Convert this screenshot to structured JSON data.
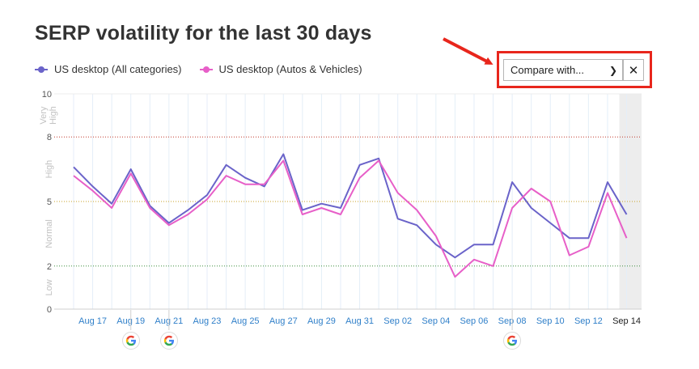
{
  "title": "SERP volatility for the last 30 days",
  "legend": [
    {
      "label": "US desktop (All categories)",
      "color": "#6a63c9"
    },
    {
      "label": "US desktop (Autos & Vehicles)",
      "color": "#e75fc8"
    }
  ],
  "compare": {
    "label": "Compare with...",
    "clear_label": "✕"
  },
  "annotation": {
    "arrow_color": "#e8261c"
  },
  "google_updates": [
    "Aug 19",
    "Aug 21",
    "Sep 08"
  ],
  "chart_data": {
    "type": "line",
    "title": "SERP volatility for the last 30 days",
    "xlabel": "",
    "ylabel": "",
    "ylim": [
      0,
      10
    ],
    "y_ticks": [
      0,
      2,
      5,
      8,
      10
    ],
    "y_bands": [
      {
        "label": "Very High",
        "from": 8,
        "to": 10
      },
      {
        "label": "High",
        "from": 5,
        "to": 8
      },
      {
        "label": "Normal",
        "from": 2,
        "to": 5
      },
      {
        "label": "Low",
        "from": 0,
        "to": 2
      }
    ],
    "thresholds": [
      {
        "value": 8,
        "color": "#c0392b"
      },
      {
        "value": 5,
        "color": "#c9a227"
      },
      {
        "value": 2,
        "color": "#3f8f3f"
      }
    ],
    "x": [
      "Aug 16",
      "Aug 17",
      "Aug 18",
      "Aug 19",
      "Aug 20",
      "Aug 21",
      "Aug 22",
      "Aug 23",
      "Aug 24",
      "Aug 25",
      "Aug 26",
      "Aug 27",
      "Aug 28",
      "Aug 29",
      "Aug 30",
      "Aug 31",
      "Sep 01",
      "Sep 02",
      "Sep 03",
      "Sep 04",
      "Sep 05",
      "Sep 06",
      "Sep 07",
      "Sep 08",
      "Sep 09",
      "Sep 10",
      "Sep 11",
      "Sep 12",
      "Sep 13",
      "Sep 14"
    ],
    "x_tick_labels": [
      "Aug 17",
      "Aug 19",
      "Aug 21",
      "Aug 23",
      "Aug 25",
      "Aug 27",
      "Aug 29",
      "Aug 31",
      "Sep 02",
      "Sep 04",
      "Sep 06",
      "Sep 08",
      "Sep 10",
      "Sep 12",
      "Sep 14"
    ],
    "highlight_last": true,
    "series": [
      {
        "name": "US desktop (All categories)",
        "color": "#6a63c9",
        "values": [
          6.6,
          5.7,
          4.9,
          6.5,
          4.8,
          4.0,
          4.6,
          5.3,
          6.7,
          6.1,
          5.7,
          7.2,
          4.6,
          4.9,
          4.7,
          6.7,
          7.0,
          4.2,
          3.9,
          3.0,
          2.4,
          3.0,
          3.0,
          5.9,
          4.7,
          4.0,
          3.3,
          3.3,
          5.9,
          4.4
        ]
      },
      {
        "name": "US desktop (Autos & Vehicles)",
        "color": "#e75fc8",
        "values": [
          6.2,
          5.5,
          4.7,
          6.3,
          4.7,
          3.9,
          4.4,
          5.1,
          6.2,
          5.8,
          5.8,
          6.9,
          4.4,
          4.7,
          4.4,
          6.1,
          6.9,
          5.4,
          4.6,
          3.4,
          1.5,
          2.3,
          2.0,
          4.7,
          5.6,
          5.0,
          2.5,
          2.9,
          5.4,
          3.3
        ]
      }
    ]
  }
}
